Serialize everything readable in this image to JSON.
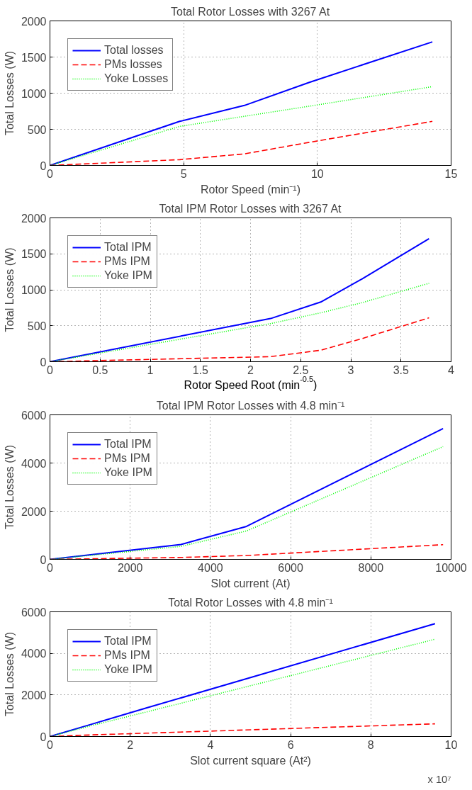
{
  "chart_data": [
    {
      "type": "line",
      "title": "Total Rotor Losses with 3267 At",
      "xlabel": "Rotor Speed (min⁻¹)",
      "ylabel": "Total Losses (W)",
      "x": [
        0,
        4.85,
        7.27,
        9.7,
        14.3
      ],
      "series": [
        {
          "name": "Total losses",
          "color": "#0000ff",
          "line_style": "solid",
          "values": [
            0,
            610,
            830,
            1150,
            1710
          ]
        },
        {
          "name": "PMs losses",
          "color": "#ff0000",
          "line_style": "dashed",
          "values": [
            0,
            80,
            160,
            320,
            610
          ]
        },
        {
          "name": "Yoke Losses",
          "color": "#00ff00",
          "line_style": "dotted",
          "values": [
            0,
            540,
            680,
            820,
            1090
          ]
        }
      ],
      "xlim": [
        0,
        15
      ],
      "ylim": [
        0,
        2000
      ],
      "xticks": [
        0,
        5,
        10,
        15
      ],
      "yticks": [
        0,
        500,
        1000,
        1500,
        2000
      ],
      "grid": true,
      "legend": "top left"
    },
    {
      "type": "line",
      "title": "Total IPM Rotor Losses with 3267 At",
      "xlabel": "Rotor Speed Root (min$^{-0.5}$)",
      "ylabel": "Total Losses (W)",
      "x": [
        0,
        2.2,
        2.7,
        3.11,
        3.78
      ],
      "series": [
        {
          "name": "Total IPM",
          "color": "#0000ff",
          "line_style": "solid",
          "values": [
            0,
            600,
            830,
            1150,
            1710
          ]
        },
        {
          "name": "PMs IPM",
          "color": "#ff0000",
          "line_style": "dashed",
          "values": [
            0,
            70,
            160,
            320,
            610
          ]
        },
        {
          "name": "Yoke IPM",
          "color": "#00ff00",
          "line_style": "dotted",
          "values": [
            0,
            530,
            680,
            820,
            1090
          ]
        }
      ],
      "xlim": [
        0,
        4
      ],
      "ylim": [
        0,
        2000
      ],
      "xticks": [
        0,
        0.5,
        1,
        1.5,
        2,
        2.5,
        3,
        3.5,
        4
      ],
      "yticks": [
        0,
        500,
        1000,
        1500,
        2000
      ],
      "grid": true,
      "legend": "top left"
    },
    {
      "type": "line",
      "title": "Total IPM Rotor Losses with 4.8 min⁻¹",
      "xlabel": "Slot current (At)",
      "ylabel": "Total Losses (W)",
      "x": [
        0,
        3267,
        4900,
        9800
      ],
      "series": [
        {
          "name": "Total IPM",
          "color": "#0000ff",
          "line_style": "solid",
          "values": [
            0,
            620,
            1370,
            5430
          ]
        },
        {
          "name": "PMs IPM",
          "color": "#ff0000",
          "line_style": "dashed",
          "values": [
            0,
            80,
            160,
            610
          ]
        },
        {
          "name": "Yoke IPM",
          "color": "#00ff00",
          "line_style": "dotted",
          "values": [
            0,
            540,
            1180,
            4680
          ]
        }
      ],
      "xlim": [
        0,
        10000
      ],
      "ylim": [
        0,
        6000
      ],
      "xticks": [
        0,
        2000,
        4000,
        6000,
        8000,
        10000
      ],
      "yticks": [
        0,
        2000,
        4000,
        6000
      ],
      "grid": true,
      "legend": "top left"
    },
    {
      "type": "line",
      "title": "Total Rotor Losses with 4.8 min⁻¹",
      "xlabel": "Slot current square (At²)",
      "ylabel": "Total Losses (W)",
      "x": [
        0,
        1.07,
        2.4,
        9.6
      ],
      "series": [
        {
          "name": "Total IPM",
          "color": "#0000ff",
          "line_style": "solid",
          "values": [
            0,
            610,
            1370,
            5430
          ]
        },
        {
          "name": "PMs IPM",
          "color": "#ff0000",
          "line_style": "dashed",
          "values": [
            0,
            80,
            160,
            610
          ]
        },
        {
          "name": "Yoke IPM",
          "color": "#00ff00",
          "line_style": "dotted",
          "values": [
            0,
            540,
            1180,
            4680
          ]
        }
      ],
      "xlim": [
        0,
        10
      ],
      "ylim": [
        0,
        6000
      ],
      "xticks": [
        0,
        2,
        4,
        6,
        8,
        10
      ],
      "yticks": [
        0,
        2000,
        4000,
        6000
      ],
      "grid": true,
      "legend": "top left",
      "annotations": [
        "x 10⁷"
      ]
    }
  ]
}
